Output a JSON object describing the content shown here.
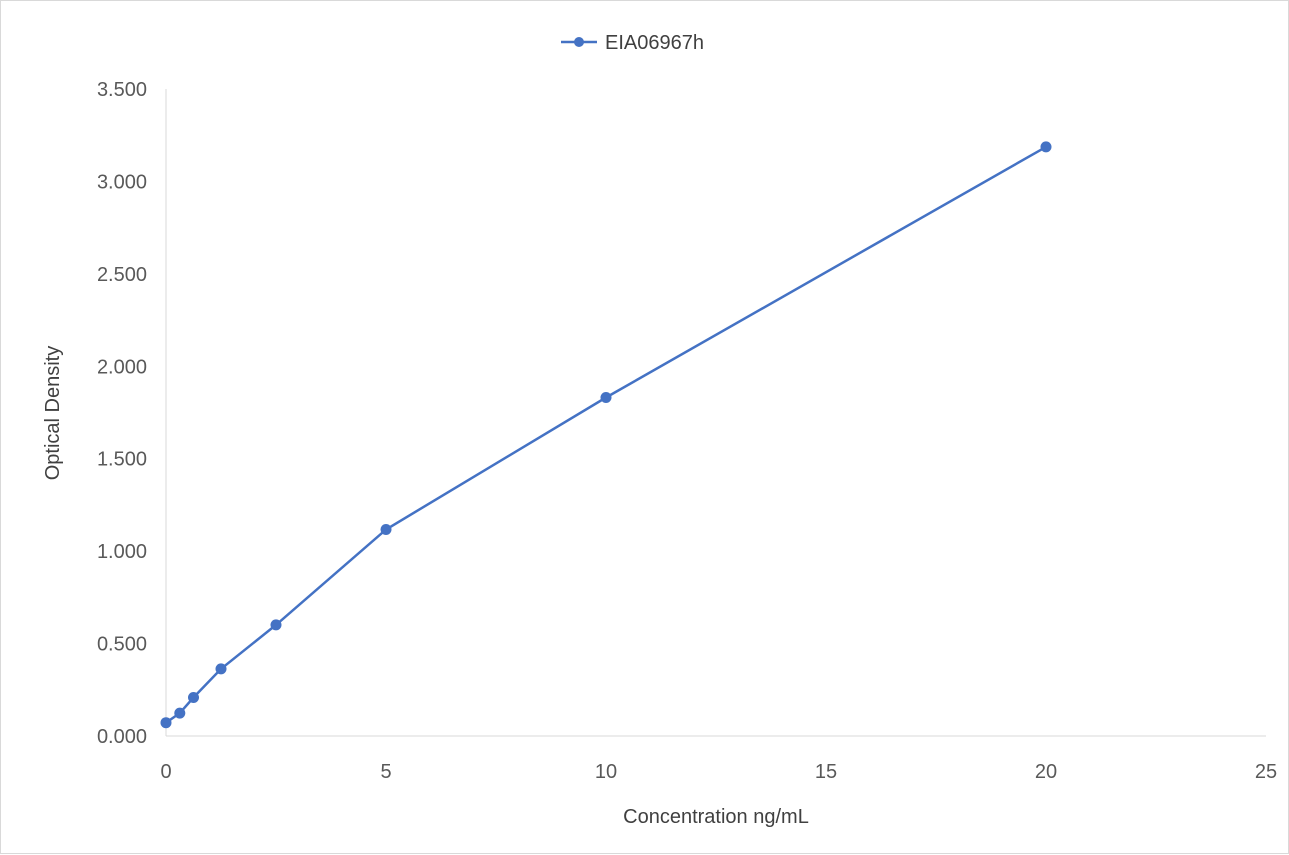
{
  "chart_data": {
    "type": "scatter",
    "title": "",
    "xlabel": "Concentration ng/mL",
    "ylabel": "Optical Density",
    "xlim": [
      0,
      25
    ],
    "ylim": [
      0,
      3.5
    ],
    "x_ticks": [
      "0",
      "5",
      "10",
      "15",
      "20",
      "25"
    ],
    "y_ticks": [
      "0.000",
      "0.500",
      "1.000",
      "1.500",
      "2.000",
      "2.500",
      "3.000",
      "3.500"
    ],
    "grid": false,
    "legend_position": "top",
    "series": [
      {
        "name": "EIA06967h",
        "color": "#4472c4",
        "x": [
          0,
          0.3125,
          0.625,
          1.25,
          2.5,
          5,
          10,
          20
        ],
        "y": [
          0.072,
          0.124,
          0.208,
          0.363,
          0.601,
          1.117,
          1.831,
          3.187
        ]
      }
    ]
  }
}
